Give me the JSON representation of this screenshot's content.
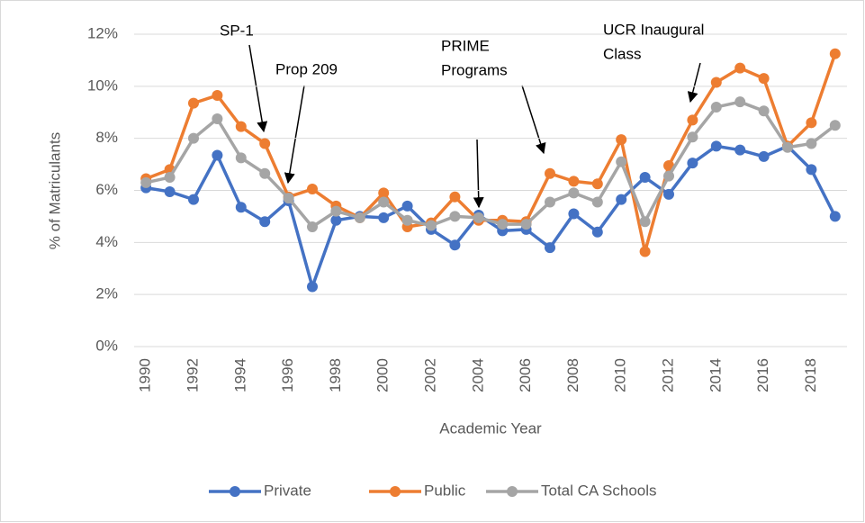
{
  "chart_data": {
    "type": "line",
    "x_label": "Academic Year",
    "y_label": "% of Matriculants",
    "categories": [
      "1990",
      null,
      "1992",
      null,
      "1994",
      null,
      "1996",
      null,
      "1998",
      null,
      "2000",
      null,
      "2002",
      null,
      "2004",
      null,
      "2006",
      null,
      "2008",
      null,
      "2010",
      null,
      "2012",
      null,
      "2014",
      null,
      "2016",
      null,
      "2018",
      null
    ],
    "series": [
      {
        "name": "Private",
        "color": "#4472c4",
        "values": [
          6.1,
          5.95,
          5.65,
          7.35,
          5.35,
          4.8,
          5.6,
          2.3,
          4.85,
          5.0,
          4.95,
          5.4,
          4.5,
          3.9,
          5.05,
          4.45,
          4.5,
          3.8,
          5.1,
          4.4,
          5.65,
          6.5,
          5.85,
          7.05,
          7.7,
          7.55,
          7.3,
          7.7,
          6.8,
          5.0
        ]
      },
      {
        "name": "Public",
        "color": "#ed7d31",
        "values": [
          6.45,
          6.8,
          9.35,
          9.65,
          8.45,
          7.8,
          5.75,
          6.05,
          5.4,
          4.95,
          5.9,
          4.6,
          4.75,
          5.75,
          4.85,
          4.85,
          4.8,
          6.65,
          6.35,
          6.25,
          7.95,
          3.65,
          6.95,
          8.7,
          10.15,
          10.7,
          10.3,
          7.7,
          8.6,
          11.25
        ]
      },
      {
        "name": "Total CA Schools",
        "color": "#a5a5a5",
        "values": [
          6.3,
          6.5,
          8.0,
          8.75,
          7.25,
          6.65,
          5.7,
          4.6,
          5.2,
          4.95,
          5.55,
          4.85,
          4.65,
          5.0,
          4.95,
          4.7,
          4.7,
          5.55,
          5.9,
          5.55,
          7.1,
          4.8,
          6.55,
          8.05,
          9.2,
          9.4,
          9.05,
          7.65,
          7.8,
          8.5
        ]
      }
    ],
    "ylim": [
      0,
      12
    ],
    "yticks": [
      {
        "value": 0,
        "label": "0%"
      },
      {
        "value": 2,
        "label": "2%"
      },
      {
        "value": 4,
        "label": "4%"
      },
      {
        "value": 6,
        "label": "6%"
      },
      {
        "value": 8,
        "label": "8%"
      },
      {
        "value": 10,
        "label": "10%"
      },
      {
        "value": 12,
        "label": "12%"
      }
    ],
    "grid": true,
    "legend": "bottom",
    "annotations": [
      {
        "lines": [
          "SP-1"
        ]
      },
      {
        "lines": [
          "Prop 209"
        ]
      },
      {
        "lines": [
          "PRIME",
          "Programs"
        ]
      },
      {
        "lines": [
          "UCR Inaugural",
          "Class"
        ]
      }
    ]
  }
}
